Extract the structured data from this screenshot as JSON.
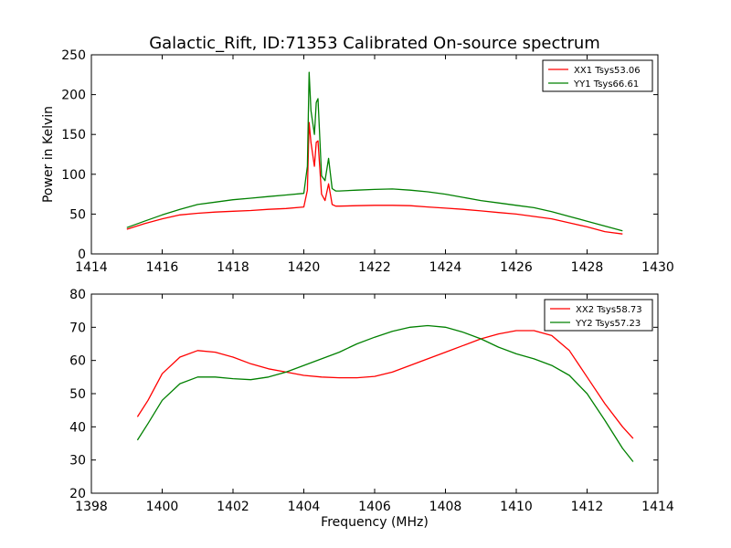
{
  "title": "Galactic_Rift, ID:71353 Calibrated On-source spectrum",
  "chart_data": [
    {
      "type": "line",
      "title": "",
      "xlabel": "",
      "ylabel": "Power in Kelvin",
      "xlim": [
        1414,
        1430
      ],
      "ylim": [
        0,
        250
      ],
      "xticks": [
        "1414",
        "1416",
        "1418",
        "1420",
        "1422",
        "1424",
        "1426",
        "1428",
        "1430"
      ],
      "yticks": [
        "0",
        "50",
        "100",
        "150",
        "200",
        "250"
      ],
      "grid": false,
      "legend": "top-right",
      "series": [
        {
          "name": "XX1 Tsys53.06",
          "color": "#ff0000",
          "x": [
            1415.0,
            1415.5,
            1416.0,
            1416.5,
            1417.0,
            1417.5,
            1418.0,
            1418.5,
            1419.0,
            1419.5,
            1420.0,
            1420.1,
            1420.15,
            1420.2,
            1420.3,
            1420.35,
            1420.4,
            1420.5,
            1420.6,
            1420.7,
            1420.8,
            1420.9,
            1421.0,
            1421.5,
            1422.0,
            1422.5,
            1423.0,
            1423.5,
            1424.0,
            1424.5,
            1425.0,
            1425.5,
            1426.0,
            1426.5,
            1427.0,
            1427.5,
            1428.0,
            1428.5,
            1429.0
          ],
          "values": [
            31,
            38,
            44,
            49,
            51,
            52.5,
            53.5,
            54.5,
            56,
            57,
            59,
            80,
            165,
            140,
            110,
            140,
            142,
            75,
            67,
            88,
            62,
            60,
            60,
            60.5,
            61,
            61,
            60.5,
            59,
            57.5,
            56,
            54,
            52,
            50,
            47,
            44,
            39,
            34,
            28,
            25
          ]
        },
        {
          "name": "YY1 Tsys66.61",
          "color": "#008000",
          "x": [
            1415.0,
            1415.5,
            1416.0,
            1416.5,
            1417.0,
            1417.5,
            1418.0,
            1418.5,
            1419.0,
            1419.5,
            1420.0,
            1420.1,
            1420.15,
            1420.2,
            1420.3,
            1420.35,
            1420.4,
            1420.5,
            1420.6,
            1420.7,
            1420.8,
            1420.9,
            1421.0,
            1421.5,
            1422.0,
            1422.5,
            1423.0,
            1423.5,
            1424.0,
            1424.5,
            1425.0,
            1425.5,
            1426.0,
            1426.5,
            1427.0,
            1427.5,
            1428.0,
            1428.5,
            1429.0
          ],
          "values": [
            33,
            41,
            49,
            56,
            62,
            65,
            68,
            70,
            72,
            74,
            76,
            110,
            228,
            180,
            150,
            190,
            195,
            98,
            92,
            120,
            82,
            79,
            79,
            80,
            81,
            81.5,
            80,
            78,
            75,
            71,
            67,
            64,
            61,
            58,
            53,
            47,
            41,
            35,
            29
          ]
        }
      ]
    },
    {
      "type": "line",
      "title": "",
      "xlabel": "Frequency (MHz)",
      "ylabel": "",
      "xlim": [
        1398,
        1414
      ],
      "ylim": [
        20,
        80
      ],
      "xticks": [
        "1398",
        "1400",
        "1402",
        "1404",
        "1406",
        "1408",
        "1410",
        "1412",
        "1414"
      ],
      "yticks": [
        "20",
        "30",
        "40",
        "50",
        "60",
        "70",
        "80"
      ],
      "grid": false,
      "legend": "top-right",
      "series": [
        {
          "name": "XX2 Tsys58.73",
          "color": "#ff0000",
          "x": [
            1399.3,
            1399.6,
            1400.0,
            1400.5,
            1401.0,
            1401.5,
            1402.0,
            1402.5,
            1403.0,
            1403.5,
            1404.0,
            1404.5,
            1405.0,
            1405.5,
            1406.0,
            1406.5,
            1407.0,
            1407.5,
            1408.0,
            1408.5,
            1409.0,
            1409.5,
            1410.0,
            1410.5,
            1411.0,
            1411.5,
            1412.0,
            1412.5,
            1413.0,
            1413.3
          ],
          "values": [
            43,
            48,
            56,
            61,
            63,
            62.5,
            61,
            59,
            57.5,
            56.5,
            55.5,
            55,
            54.8,
            54.8,
            55.2,
            56.5,
            58.5,
            60.5,
            62.5,
            64.5,
            66.5,
            68,
            69,
            69,
            67.5,
            63,
            55,
            47,
            40,
            36.5
          ]
        },
        {
          "name": "YY2 Tsys57.23",
          "color": "#008000",
          "x": [
            1399.3,
            1399.6,
            1400.0,
            1400.5,
            1401.0,
            1401.5,
            1402.0,
            1402.5,
            1403.0,
            1403.5,
            1404.0,
            1404.5,
            1405.0,
            1405.5,
            1406.0,
            1406.5,
            1407.0,
            1407.5,
            1408.0,
            1408.5,
            1409.0,
            1409.5,
            1410.0,
            1410.5,
            1411.0,
            1411.5,
            1412.0,
            1412.5,
            1413.0,
            1413.3
          ],
          "values": [
            36,
            41,
            48,
            53,
            55,
            55,
            54.5,
            54.2,
            55,
            56.5,
            58.5,
            60.5,
            62.5,
            65,
            67,
            68.8,
            70,
            70.5,
            70,
            68.5,
            66.5,
            64,
            62,
            60.5,
            58.5,
            55.5,
            50,
            42,
            33.5,
            29.5
          ]
        }
      ]
    }
  ]
}
